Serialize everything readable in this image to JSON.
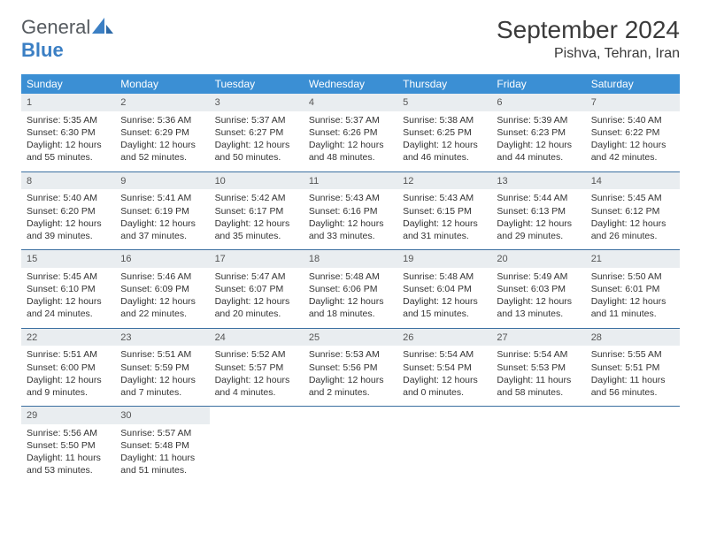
{
  "logo": {
    "text_gray": "General",
    "text_blue": "Blue"
  },
  "title": "September 2024",
  "location": "Pishva, Tehran, Iran",
  "colors": {
    "header_bg": "#3b8fd4",
    "header_text": "#ffffff",
    "daynum_bg": "#e9edf0",
    "row_border": "#3b6fa0",
    "logo_gray": "#555a5f",
    "logo_blue": "#3b7fc4",
    "text": "#333333",
    "background": "#ffffff"
  },
  "day_names": [
    "Sunday",
    "Monday",
    "Tuesday",
    "Wednesday",
    "Thursday",
    "Friday",
    "Saturday"
  ],
  "labels": {
    "sunrise": "Sunrise:",
    "sunset": "Sunset:",
    "daylight": "Daylight:"
  },
  "weeks": [
    [
      {
        "n": "1",
        "sr": "5:35 AM",
        "ss": "6:30 PM",
        "dl": "12 hours and 55 minutes."
      },
      {
        "n": "2",
        "sr": "5:36 AM",
        "ss": "6:29 PM",
        "dl": "12 hours and 52 minutes."
      },
      {
        "n": "3",
        "sr": "5:37 AM",
        "ss": "6:27 PM",
        "dl": "12 hours and 50 minutes."
      },
      {
        "n": "4",
        "sr": "5:37 AM",
        "ss": "6:26 PM",
        "dl": "12 hours and 48 minutes."
      },
      {
        "n": "5",
        "sr": "5:38 AM",
        "ss": "6:25 PM",
        "dl": "12 hours and 46 minutes."
      },
      {
        "n": "6",
        "sr": "5:39 AM",
        "ss": "6:23 PM",
        "dl": "12 hours and 44 minutes."
      },
      {
        "n": "7",
        "sr": "5:40 AM",
        "ss": "6:22 PM",
        "dl": "12 hours and 42 minutes."
      }
    ],
    [
      {
        "n": "8",
        "sr": "5:40 AM",
        "ss": "6:20 PM",
        "dl": "12 hours and 39 minutes."
      },
      {
        "n": "9",
        "sr": "5:41 AM",
        "ss": "6:19 PM",
        "dl": "12 hours and 37 minutes."
      },
      {
        "n": "10",
        "sr": "5:42 AM",
        "ss": "6:17 PM",
        "dl": "12 hours and 35 minutes."
      },
      {
        "n": "11",
        "sr": "5:43 AM",
        "ss": "6:16 PM",
        "dl": "12 hours and 33 minutes."
      },
      {
        "n": "12",
        "sr": "5:43 AM",
        "ss": "6:15 PM",
        "dl": "12 hours and 31 minutes."
      },
      {
        "n": "13",
        "sr": "5:44 AM",
        "ss": "6:13 PM",
        "dl": "12 hours and 29 minutes."
      },
      {
        "n": "14",
        "sr": "5:45 AM",
        "ss": "6:12 PM",
        "dl": "12 hours and 26 minutes."
      }
    ],
    [
      {
        "n": "15",
        "sr": "5:45 AM",
        "ss": "6:10 PM",
        "dl": "12 hours and 24 minutes."
      },
      {
        "n": "16",
        "sr": "5:46 AM",
        "ss": "6:09 PM",
        "dl": "12 hours and 22 minutes."
      },
      {
        "n": "17",
        "sr": "5:47 AM",
        "ss": "6:07 PM",
        "dl": "12 hours and 20 minutes."
      },
      {
        "n": "18",
        "sr": "5:48 AM",
        "ss": "6:06 PM",
        "dl": "12 hours and 18 minutes."
      },
      {
        "n": "19",
        "sr": "5:48 AM",
        "ss": "6:04 PM",
        "dl": "12 hours and 15 minutes."
      },
      {
        "n": "20",
        "sr": "5:49 AM",
        "ss": "6:03 PM",
        "dl": "12 hours and 13 minutes."
      },
      {
        "n": "21",
        "sr": "5:50 AM",
        "ss": "6:01 PM",
        "dl": "12 hours and 11 minutes."
      }
    ],
    [
      {
        "n": "22",
        "sr": "5:51 AM",
        "ss": "6:00 PM",
        "dl": "12 hours and 9 minutes."
      },
      {
        "n": "23",
        "sr": "5:51 AM",
        "ss": "5:59 PM",
        "dl": "12 hours and 7 minutes."
      },
      {
        "n": "24",
        "sr": "5:52 AM",
        "ss": "5:57 PM",
        "dl": "12 hours and 4 minutes."
      },
      {
        "n": "25",
        "sr": "5:53 AM",
        "ss": "5:56 PM",
        "dl": "12 hours and 2 minutes."
      },
      {
        "n": "26",
        "sr": "5:54 AM",
        "ss": "5:54 PM",
        "dl": "12 hours and 0 minutes."
      },
      {
        "n": "27",
        "sr": "5:54 AM",
        "ss": "5:53 PM",
        "dl": "11 hours and 58 minutes."
      },
      {
        "n": "28",
        "sr": "5:55 AM",
        "ss": "5:51 PM",
        "dl": "11 hours and 56 minutes."
      }
    ],
    [
      {
        "n": "29",
        "sr": "5:56 AM",
        "ss": "5:50 PM",
        "dl": "11 hours and 53 minutes."
      },
      {
        "n": "30",
        "sr": "5:57 AM",
        "ss": "5:48 PM",
        "dl": "11 hours and 51 minutes."
      },
      {
        "empty": true
      },
      {
        "empty": true
      },
      {
        "empty": true
      },
      {
        "empty": true
      },
      {
        "empty": true
      }
    ]
  ]
}
